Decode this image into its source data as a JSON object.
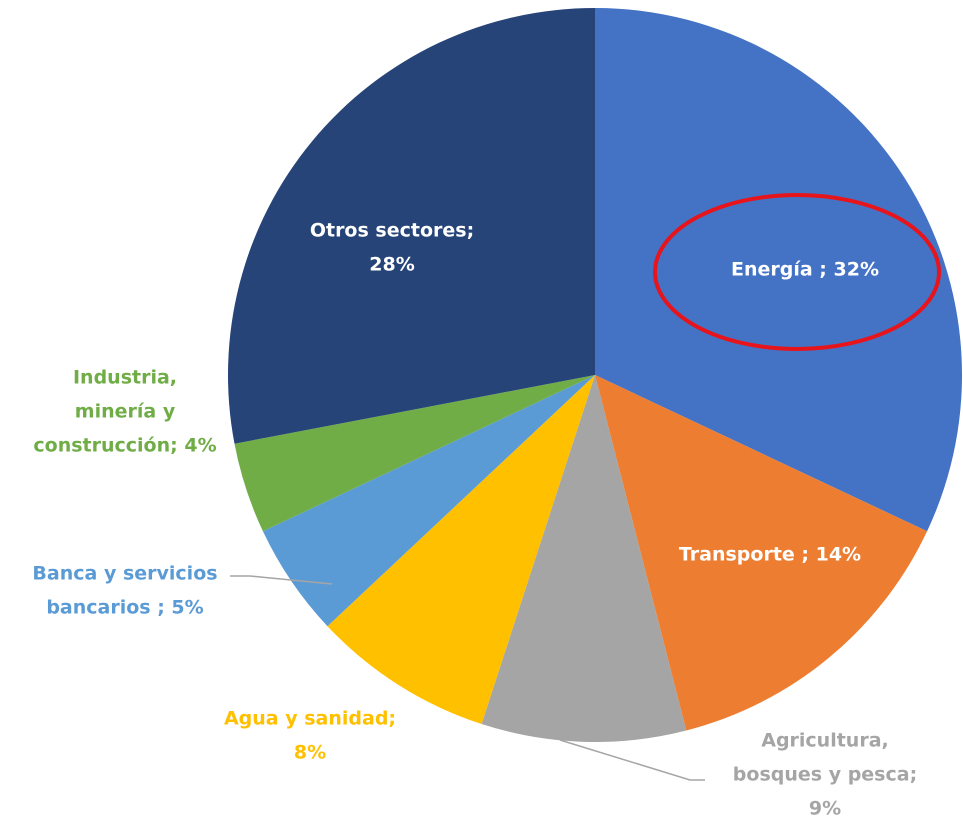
{
  "chart_data": {
    "type": "pie",
    "values": [
      32,
      14,
      9,
      8,
      5,
      4,
      28
    ],
    "value_labels": [
      [
        "Energía ; 32%"
      ],
      [
        "Transporte ; 14%"
      ],
      [
        "Agricultura,",
        "bosques y pesca;",
        "9%"
      ],
      [
        "Agua y sanidad;",
        "8%"
      ],
      [
        "Banca y servicios",
        "bancarios ; 5%"
      ],
      [
        "Industria,",
        "minería y",
        "construcción; 4%"
      ],
      [
        "Otros sectores;",
        "28%"
      ]
    ],
    "colors": [
      "#4472c4",
      "#ed7d31",
      "#a5a5a5",
      "#ffc000",
      "#5b9bd5",
      "#70ad47",
      "#264478"
    ]
  }
}
